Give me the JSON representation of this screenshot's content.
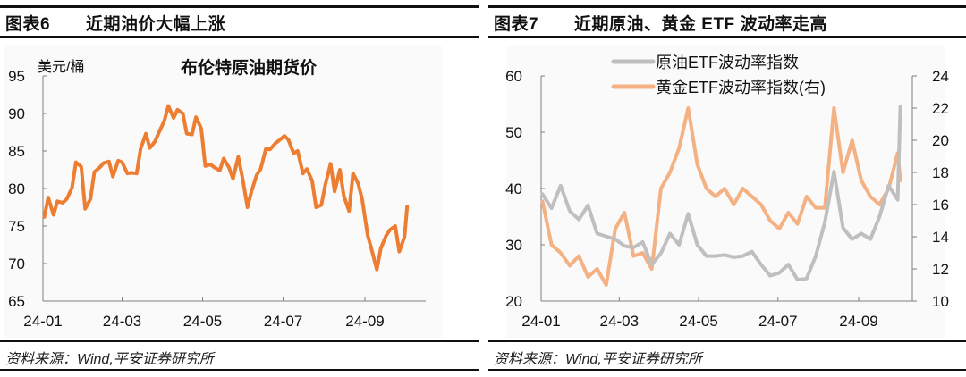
{
  "figures": [
    {
      "number": "图表6",
      "title": "近期油价大幅上涨",
      "source": "资料来源：Wind,平安证券研究所"
    },
    {
      "number": "图表7",
      "title": "近期原油、黄金 ETF 波动率走高",
      "source": "资料来源：Wind,平安证券研究所"
    }
  ],
  "colors": {
    "brent": "#ED7D31",
    "oil_etf_vol": "#BFBFBF",
    "gold_etf_vol": "#F4B183",
    "axis": "#7f7f7f"
  },
  "chart_data": [
    {
      "type": "line",
      "title": "布伦特原油期货价",
      "ylabel": "美元/桶",
      "xlabel": "",
      "x_ticks": [
        "24-01",
        "24-03",
        "24-05",
        "24-07",
        "24-09"
      ],
      "y_ticks": [
        65,
        70,
        75,
        80,
        85,
        90,
        95
      ],
      "ylim": [
        65,
        95
      ],
      "grid": false,
      "legend": null,
      "series": [
        {
          "name": "布伦特原油期货价",
          "x": [
            "2024-01-02",
            "2024-01-05",
            "2024-01-09",
            "2024-01-12",
            "2024-01-16",
            "2024-01-19",
            "2024-01-23",
            "2024-01-26",
            "2024-01-30",
            "2024-02-02",
            "2024-02-06",
            "2024-02-09",
            "2024-02-13",
            "2024-02-16",
            "2024-02-20",
            "2024-02-23",
            "2024-02-27",
            "2024-03-01",
            "2024-03-05",
            "2024-03-08",
            "2024-03-12",
            "2024-03-15",
            "2024-03-19",
            "2024-03-22",
            "2024-03-26",
            "2024-03-29",
            "2024-04-02",
            "2024-04-05",
            "2024-04-09",
            "2024-04-12",
            "2024-04-16",
            "2024-04-19",
            "2024-04-23",
            "2024-04-26",
            "2024-04-30",
            "2024-05-03",
            "2024-05-07",
            "2024-05-10",
            "2024-05-14",
            "2024-05-17",
            "2024-05-21",
            "2024-05-24",
            "2024-05-28",
            "2024-05-31",
            "2024-06-04",
            "2024-06-07",
            "2024-06-11",
            "2024-06-14",
            "2024-06-18",
            "2024-06-21",
            "2024-06-25",
            "2024-06-28",
            "2024-07-02",
            "2024-07-05",
            "2024-07-09",
            "2024-07-12",
            "2024-07-16",
            "2024-07-19",
            "2024-07-23",
            "2024-07-26",
            "2024-07-30",
            "2024-08-02",
            "2024-08-06",
            "2024-08-09",
            "2024-08-13",
            "2024-08-16",
            "2024-08-20",
            "2024-08-23",
            "2024-08-27",
            "2024-08-30",
            "2024-09-03",
            "2024-09-06",
            "2024-09-10",
            "2024-09-13",
            "2024-09-17",
            "2024-09-20",
            "2024-09-24",
            "2024-09-27",
            "2024-10-01",
            "2024-10-03"
          ],
          "values": [
            76.2,
            78.8,
            76.5,
            78.3,
            78.1,
            78.6,
            80.1,
            83.5,
            82.9,
            77.3,
            78.6,
            82.2,
            82.8,
            83.4,
            83.6,
            81.6,
            83.7,
            83.5,
            82.0,
            82.1,
            82.0,
            85.3,
            87.3,
            85.4,
            86.3,
            87.5,
            89.0,
            91.0,
            89.4,
            90.5,
            90.0,
            87.3,
            87.2,
            89.5,
            88.0,
            83.0,
            83.2,
            82.8,
            82.4,
            84.0,
            82.8,
            81.3,
            84.2,
            81.6,
            77.5,
            79.6,
            81.8,
            82.6,
            85.3,
            85.2,
            86.0,
            86.4,
            87.0,
            86.5,
            84.7,
            85.0,
            82.0,
            82.6,
            81.0,
            77.5,
            77.8,
            80.5,
            83.3,
            79.6,
            82.5,
            79.0,
            77.0,
            82.0,
            80.6,
            78.5,
            73.8,
            71.9,
            69.2,
            72.0,
            73.7,
            74.5,
            75.0,
            71.6,
            73.6,
            77.6
          ]
        }
      ]
    },
    {
      "type": "line",
      "title": "",
      "xlabel": "",
      "x_ticks": [
        "24-01",
        "24-03",
        "24-05",
        "24-07",
        "24-09"
      ],
      "y_ticks_left": [
        20,
        30,
        40,
        50,
        60
      ],
      "y_ticks_right": [
        10,
        12,
        14,
        16,
        18,
        20,
        22,
        24
      ],
      "ylim_left": [
        20,
        60
      ],
      "ylim_right": [
        10,
        24
      ],
      "grid": false,
      "legend": "top-center",
      "series": [
        {
          "name": "原油ETF波动率指数",
          "axis": "left",
          "x": [
            "2024-01-02",
            "2024-01-09",
            "2024-01-16",
            "2024-01-23",
            "2024-01-30",
            "2024-02-06",
            "2024-02-13",
            "2024-02-20",
            "2024-02-27",
            "2024-03-05",
            "2024-03-12",
            "2024-03-19",
            "2024-03-26",
            "2024-04-02",
            "2024-04-09",
            "2024-04-16",
            "2024-04-23",
            "2024-04-30",
            "2024-05-07",
            "2024-05-14",
            "2024-05-21",
            "2024-05-28",
            "2024-06-04",
            "2024-06-11",
            "2024-06-18",
            "2024-06-25",
            "2024-07-02",
            "2024-07-09",
            "2024-07-16",
            "2024-07-23",
            "2024-07-30",
            "2024-08-06",
            "2024-08-13",
            "2024-08-20",
            "2024-08-27",
            "2024-09-03",
            "2024-09-10",
            "2024-09-17",
            "2024-09-24",
            "2024-10-01",
            "2024-10-03"
          ],
          "values": [
            39.0,
            36.5,
            40.5,
            36.0,
            34.5,
            37.0,
            32.0,
            31.5,
            31.0,
            29.8,
            29.5,
            30.5,
            26.5,
            28.5,
            32.0,
            30.0,
            35.5,
            30.0,
            28.0,
            28.0,
            28.2,
            27.8,
            28.0,
            28.8,
            26.5,
            24.5,
            25.0,
            26.5,
            23.8,
            24.0,
            28.0,
            34.0,
            43.0,
            33.0,
            31.0,
            32.0,
            31.0,
            35.0,
            40.5,
            38.0,
            54.5
          ]
        },
        {
          "name": "黄金ETF波动率指数(右)",
          "axis": "right",
          "x": [
            "2024-01-02",
            "2024-01-09",
            "2024-01-16",
            "2024-01-23",
            "2024-01-30",
            "2024-02-06",
            "2024-02-13",
            "2024-02-20",
            "2024-02-27",
            "2024-03-05",
            "2024-03-12",
            "2024-03-19",
            "2024-03-26",
            "2024-04-02",
            "2024-04-09",
            "2024-04-16",
            "2024-04-23",
            "2024-04-30",
            "2024-05-07",
            "2024-05-14",
            "2024-05-21",
            "2024-05-28",
            "2024-06-04",
            "2024-06-11",
            "2024-06-18",
            "2024-06-25",
            "2024-07-02",
            "2024-07-09",
            "2024-07-16",
            "2024-07-23",
            "2024-07-30",
            "2024-08-06",
            "2024-08-13",
            "2024-08-20",
            "2024-08-27",
            "2024-09-03",
            "2024-09-10",
            "2024-09-17",
            "2024-09-24",
            "2024-10-01",
            "2024-10-03"
          ],
          "values": [
            16.2,
            13.5,
            13.0,
            12.2,
            12.8,
            11.5,
            12.0,
            11.0,
            14.5,
            15.5,
            12.8,
            13.0,
            12.0,
            17.0,
            18.0,
            19.5,
            22.0,
            18.5,
            17.0,
            16.5,
            17.0,
            16.0,
            17.0,
            16.5,
            16.0,
            15.0,
            14.5,
            15.5,
            14.8,
            16.5,
            15.8,
            15.8,
            22.0,
            18.0,
            20.0,
            17.5,
            16.5,
            16.0,
            17.0,
            19.2,
            17.5
          ]
        }
      ]
    }
  ]
}
